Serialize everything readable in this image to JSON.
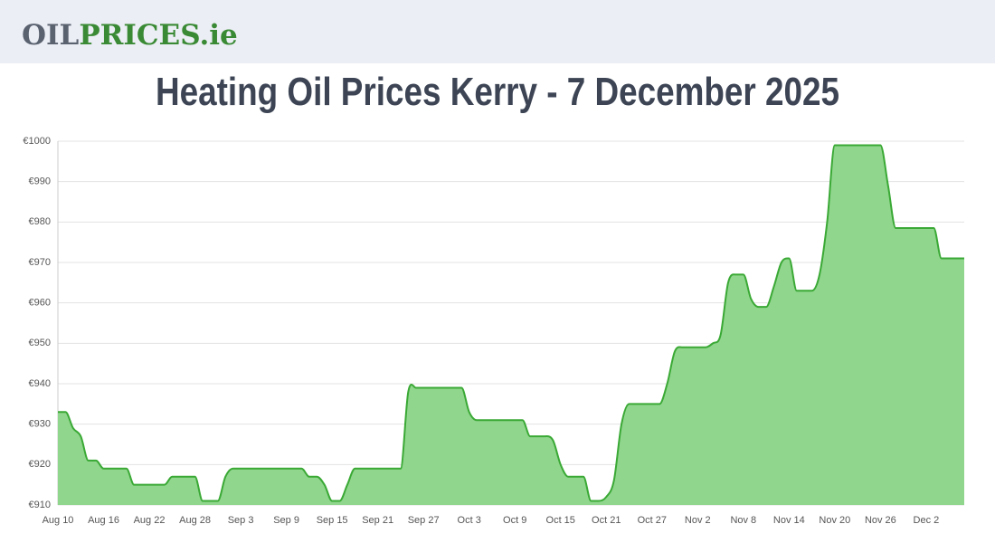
{
  "header": {
    "logo_dark": "OIL",
    "logo_green": "PRICES.ie"
  },
  "chart_data": {
    "type": "area",
    "title": "Heating Oil Prices Kerry - 7 December 2025",
    "categories": [
      "Aug 10",
      null,
      null,
      null,
      null,
      null,
      "Aug 16",
      null,
      null,
      null,
      null,
      null,
      "Aug 22",
      null,
      null,
      null,
      null,
      null,
      "Aug 28",
      null,
      null,
      null,
      null,
      null,
      "Sep 3",
      null,
      null,
      null,
      null,
      null,
      "Sep 9",
      null,
      null,
      null,
      null,
      null,
      "Sep 15",
      null,
      null,
      null,
      null,
      null,
      "Sep 21",
      null,
      null,
      null,
      null,
      null,
      "Sep 27",
      null,
      null,
      null,
      null,
      null,
      "Oct 3",
      null,
      null,
      null,
      null,
      null,
      "Oct 9",
      null,
      null,
      null,
      null,
      null,
      "Oct 15",
      null,
      null,
      null,
      null,
      null,
      "Oct 21",
      null,
      null,
      null,
      null,
      null,
      "Oct 27",
      null,
      null,
      null,
      null,
      null,
      "Nov 2",
      null,
      null,
      null,
      null,
      null,
      "Nov 8",
      null,
      null,
      null,
      null,
      null,
      "Nov 14",
      null,
      null,
      null,
      null,
      null,
      "Nov 20",
      null,
      null,
      null,
      null,
      null,
      "Nov 26",
      null,
      null,
      null,
      null,
      null,
      "Dec 2",
      null,
      null,
      null,
      null,
      null
    ],
    "values": [
      933,
      933,
      929,
      927,
      921,
      921,
      919,
      919,
      919,
      919,
      915,
      915,
      915,
      915,
      915,
      917,
      917,
      917,
      917,
      911,
      911,
      911,
      917,
      919,
      919,
      919,
      919,
      919,
      919,
      919,
      919,
      919,
      919,
      917,
      917,
      915,
      911,
      911,
      915,
      919,
      919,
      919,
      919,
      919,
      919,
      919,
      938,
      939,
      939,
      939,
      939,
      939,
      939,
      939,
      933,
      931,
      931,
      931,
      931,
      931,
      931,
      931,
      927,
      927,
      927,
      926,
      920,
      917,
      917,
      917,
      911,
      911,
      912,
      916,
      930,
      935,
      935,
      935,
      935,
      935,
      940,
      948,
      949,
      949,
      949,
      949,
      950,
      952,
      965,
      967,
      967,
      961,
      959,
      959,
      964,
      970,
      971,
      963,
      963,
      963,
      967,
      980,
      999,
      999,
      999,
      999,
      999,
      999,
      999,
      989,
      978.5,
      978.5,
      978.5,
      978.5,
      978.5,
      978.5,
      971,
      971,
      971,
      971
    ],
    "color": "#3aa935",
    "fill_color": "#90d68d",
    "ylim": [
      910,
      1000
    ],
    "yticks": [
      {
        "value": 910,
        "label": "€910"
      },
      {
        "value": 920,
        "label": "€920"
      },
      {
        "value": 930,
        "label": "€930"
      },
      {
        "value": 940,
        "label": "€940"
      },
      {
        "value": 950,
        "label": "€950"
      },
      {
        "value": 960,
        "label": "€960"
      },
      {
        "value": 970,
        "label": "€970"
      },
      {
        "value": 980,
        "label": "€980"
      },
      {
        "value": 990,
        "label": "€990"
      },
      {
        "value": 1000,
        "label": "€1000"
      }
    ],
    "grid": true
  }
}
